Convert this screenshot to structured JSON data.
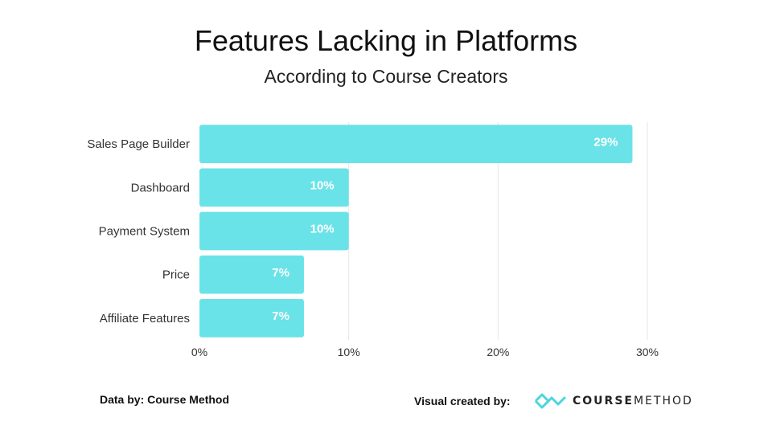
{
  "title": "Features Lacking in Platforms",
  "subtitle": "According to Course Creators",
  "footer": {
    "data_by": "Data by: Course Method",
    "visual_by": "Visual created by:",
    "logo_part1": "COURSE",
    "logo_part2": "METHOD"
  },
  "colors": {
    "bar": "#6ae3e8",
    "grid": "#e6e6e6",
    "logo": "#4ad6de"
  },
  "chart_data": {
    "type": "bar",
    "orientation": "horizontal",
    "categories": [
      "Sales Page Builder",
      "Dashboard",
      "Payment System",
      "Price",
      "Affiliate Features"
    ],
    "values": [
      29,
      10,
      10,
      7,
      7
    ],
    "value_labels": [
      "29%",
      "10%",
      "10%",
      "7%",
      "7%"
    ],
    "xlim": [
      0,
      30
    ],
    "xticks": [
      0,
      10,
      20,
      30
    ],
    "xtick_labels": [
      "0%",
      "10%",
      "20%",
      "30%"
    ],
    "grid": true
  }
}
